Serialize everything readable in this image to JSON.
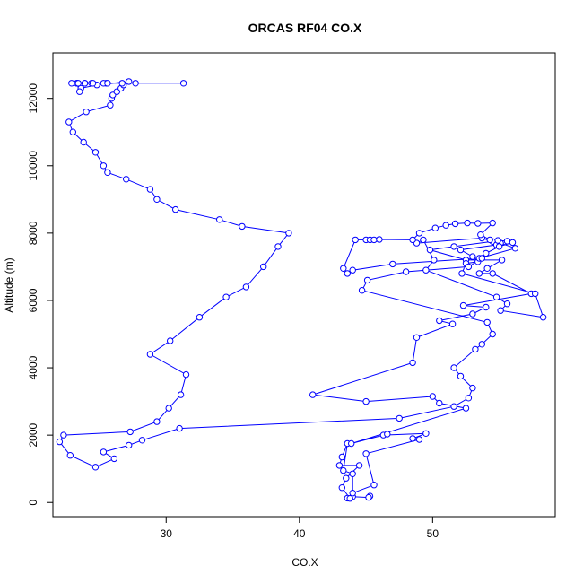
{
  "chart_data": {
    "type": "line",
    "title": "ORCAS RF04 CO.X",
    "xlabel": "CO.X",
    "ylabel": "Altitude (m)",
    "xlim": [
      21.5,
      59.2
    ],
    "ylim": [
      -420,
      13350
    ],
    "xticks": [
      30,
      40,
      50
    ],
    "yticks": [
      0,
      2000,
      4000,
      6000,
      8000,
      10000,
      12000
    ],
    "xtick_labels": [
      "30",
      "40",
      "50"
    ],
    "ytick_labels": [
      "0",
      "2000",
      "4000",
      "6000",
      "8000",
      "10000",
      "12000"
    ],
    "grid": false,
    "legend": "none",
    "series": [
      {
        "color": "#0000ff",
        "marker": "open-circle",
        "x": [
          45.3,
          45.2,
          44.0,
          43.6,
          43.8,
          43.2,
          43.5,
          44.5,
          43.0,
          43.2,
          43.6,
          43.3,
          44.0,
          44.0,
          45.6,
          45.0,
          49.0,
          48.5,
          49.5,
          46.3,
          46.6,
          43.9,
          52.5,
          50.5,
          50.0,
          45.0,
          41.0,
          48.5,
          48.8,
          51.5,
          50.5,
          53.0,
          54.0,
          52.3,
          57.4,
          54.5,
          53.5,
          54.1,
          55.2,
          52.5,
          49.8,
          51.6,
          54.5,
          53.7,
          48.8,
          49.3,
          50.1,
          49.5,
          54.8,
          55.6,
          55.1,
          58.3,
          57.7,
          52.2,
          52.5,
          53.4,
          53.0,
          52.1,
          54.8,
          55.1,
          56.2,
          53.5,
          47.0,
          44.0,
          43.6,
          43.3,
          44.2,
          45.0,
          45.3,
          45.6,
          46.0,
          48.5,
          49.0,
          50.2,
          51.0,
          51.7,
          52.6,
          53.4,
          54.5,
          53.6,
          54.3,
          54.9,
          55.6,
          56.0,
          55.0,
          54.0,
          53.7,
          52.7,
          48.0,
          45.1,
          44.7,
          54.1,
          54.5,
          53.7,
          53.2,
          51.6,
          52.1,
          53.0,
          52.7,
          51.6,
          47.5,
          31.0,
          28.2,
          27.2,
          25.3,
          26.1,
          24.7,
          22.8,
          22.0,
          22.3,
          27.3,
          29.3,
          30.2,
          31.1,
          31.5,
          28.8,
          30.3,
          32.5,
          34.5,
          36.0,
          37.3,
          38.4,
          39.2,
          35.7,
          34.0,
          30.7,
          29.3,
          28.8,
          27.0,
          25.6,
          25.3,
          24.7,
          23.8,
          23.0,
          22.7,
          24.0,
          25.8,
          25.9,
          26.0,
          26.3,
          26.6,
          26.8,
          27.2,
          24.8,
          23.6,
          23.5,
          23.3,
          23.9,
          23.3,
          24.4,
          25.5,
          22.9,
          23.4,
          23.9,
          24.5,
          25.3,
          25.6,
          26.7,
          27.7,
          31.3
        ],
        "y": [
          190,
          150,
          170,
          130,
          120,
          440,
          720,
          1100,
          1100,
          1350,
          1750,
          950,
          850,
          280,
          520,
          1450,
          1870,
          1900,
          2050,
          2000,
          2030,
          1750,
          2800,
          2950,
          3150,
          3000,
          3200,
          4150,
          4900,
          5300,
          5400,
          5600,
          5800,
          5850,
          6200,
          6800,
          6800,
          6950,
          7200,
          7200,
          7500,
          7600,
          7750,
          7850,
          7700,
          7800,
          7200,
          6900,
          6100,
          5900,
          5700,
          5500,
          6200,
          6800,
          7100,
          7150,
          7300,
          7500,
          7650,
          7700,
          7550,
          7250,
          7080,
          6900,
          6800,
          6950,
          7800,
          7800,
          7800,
          7800,
          7810,
          7800,
          8000,
          8150,
          8230,
          8280,
          8300,
          8290,
          8300,
          7950,
          7800,
          7780,
          7760,
          7720,
          7600,
          7400,
          7250,
          7000,
          6850,
          6600,
          6300,
          5350,
          5000,
          4700,
          4550,
          4000,
          3750,
          3400,
          3100,
          2850,
          2500,
          2200,
          1850,
          1700,
          1500,
          1300,
          1050,
          1400,
          1800,
          2000,
          2100,
          2400,
          2800,
          3200,
          3800,
          4400,
          4800,
          5500,
          6100,
          6400,
          7000,
          7600,
          8000,
          8200,
          8400,
          8700,
          9000,
          9300,
          9600,
          9800,
          10000,
          10400,
          10700,
          11000,
          11300,
          11600,
          11800,
          12000,
          12100,
          12200,
          12300,
          12400,
          12500,
          12400,
          12300,
          12200,
          12450,
          12450,
          12450,
          12450,
          12450,
          12450,
          12450,
          12450,
          12450,
          12450,
          12450,
          12450,
          12450,
          12450
        ]
      }
    ]
  }
}
